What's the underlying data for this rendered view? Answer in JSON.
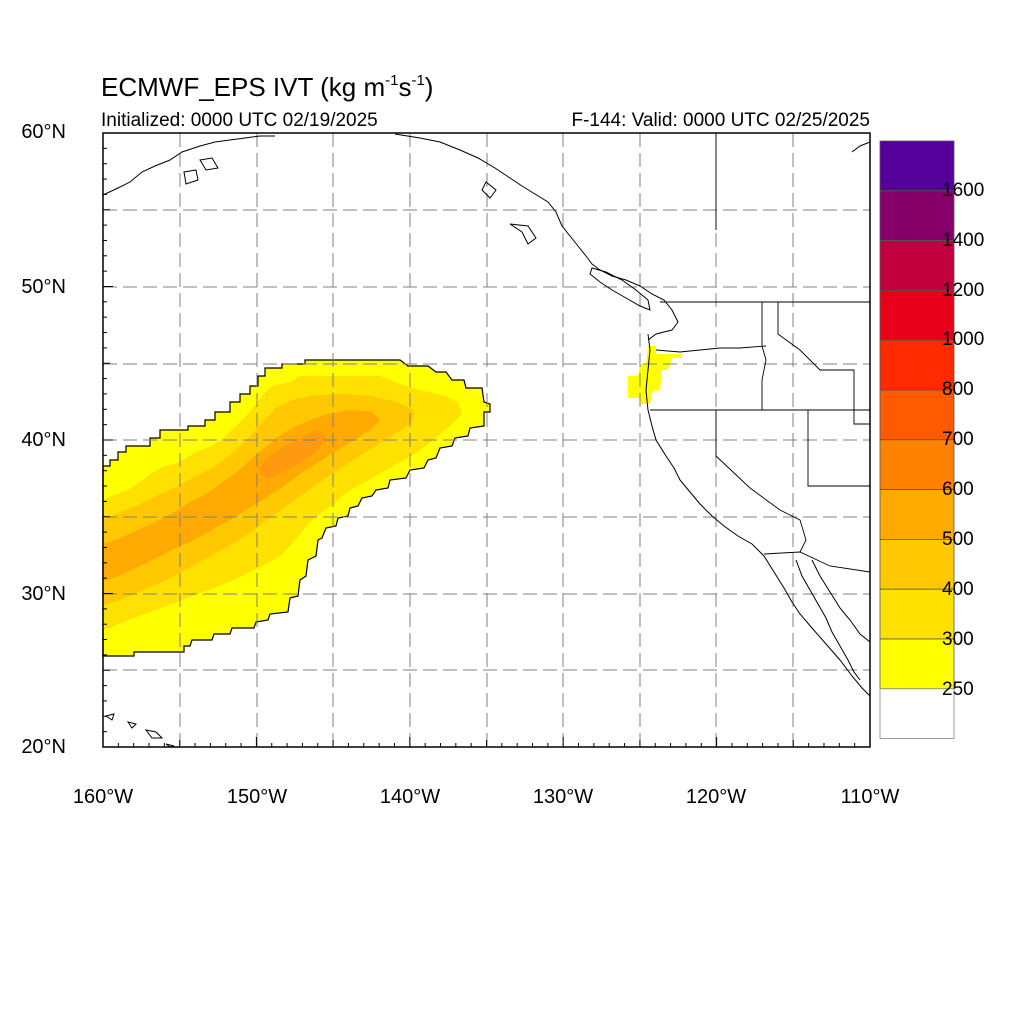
{
  "header": {
    "title_main": "ECMWF_EPS IVT (kg m",
    "title_sup1": "-1",
    "title_mid": "s",
    "title_sup2": "-1",
    "title_end": ")",
    "initialized": "Initialized: 0000 UTC 02/19/2025",
    "valid": "F-144: Valid: 0000 UTC 02/25/2025"
  },
  "axes": {
    "lat_labels": [
      "60°N",
      "50°N",
      "40°N",
      "30°N",
      "20°N"
    ],
    "lon_labels": [
      "160°W",
      "150°W",
      "140°W",
      "130°W",
      "120°W",
      "110°W"
    ],
    "lat_range": [
      20,
      60
    ],
    "lon_range": [
      -160,
      -110
    ]
  },
  "colorbar": {
    "labels": [
      "1600",
      "1400",
      "1200",
      "1000",
      "800",
      "700",
      "600",
      "500",
      "400",
      "300",
      "250"
    ],
    "colors": [
      "#55009a",
      "#87006a",
      "#c20040",
      "#e8001a",
      "#ff2a00",
      "#ff5a00",
      "#ff8200",
      "#ffaa00",
      "#ffc800",
      "#ffe100",
      "#ffff00",
      "#ffffff"
    ]
  }
}
